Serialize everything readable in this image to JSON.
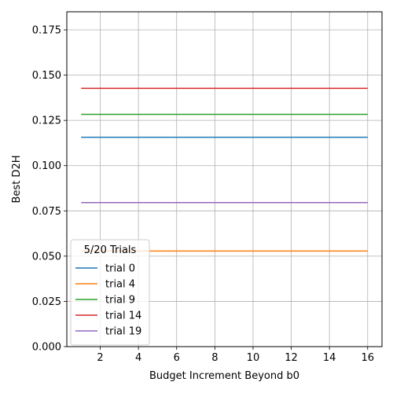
{
  "chart_data": {
    "type": "line",
    "xlabel": "Budget Increment Beyond b0",
    "ylabel": "Best D2H",
    "xlim": [
      0.25,
      16.75
    ],
    "ylim": [
      0.0,
      0.185
    ],
    "xticks": [
      2,
      4,
      6,
      8,
      10,
      12,
      14,
      16
    ],
    "xtick_labels": [
      "2",
      "4",
      "6",
      "8",
      "10",
      "12",
      "14",
      "16"
    ],
    "yticks": [
      0.0,
      0.025,
      0.05,
      0.075,
      0.1,
      0.125,
      0.15,
      0.175
    ],
    "ytick_labels": [
      "0.000",
      "0.025",
      "0.050",
      "0.075",
      "0.100",
      "0.125",
      "0.150",
      "0.175"
    ],
    "grid": true,
    "legend": {
      "title": "5/20 Trials",
      "placement": "lower-left"
    },
    "x": [
      1,
      2,
      3,
      4,
      5,
      6,
      7,
      8,
      9,
      10,
      11,
      12,
      13,
      14,
      15,
      16
    ],
    "series": [
      {
        "name": "trial 0",
        "color": "#1f77b4",
        "values": [
          0.1157,
          0.1157,
          0.1157,
          0.1157,
          0.1157,
          0.1157,
          0.1157,
          0.1157,
          0.1157,
          0.1157,
          0.1157,
          0.1157,
          0.1157,
          0.1157,
          0.1157,
          0.1157
        ]
      },
      {
        "name": "trial 4",
        "color": "#ff7f0e",
        "values": [
          0.0528,
          0.0528,
          0.0528,
          0.0528,
          0.0528,
          0.0528,
          0.0528,
          0.0528,
          0.0528,
          0.0528,
          0.0528,
          0.0528,
          0.0528,
          0.0528,
          0.0528,
          0.0528
        ]
      },
      {
        "name": "trial 9",
        "color": "#2ca02c",
        "values": [
          0.1283,
          0.1283,
          0.1283,
          0.1283,
          0.1283,
          0.1283,
          0.1283,
          0.1283,
          0.1283,
          0.1283,
          0.1283,
          0.1283,
          0.1283,
          0.1283,
          0.1283,
          0.1283
        ]
      },
      {
        "name": "trial 14",
        "color": "#d62728",
        "values": [
          0.1427,
          0.1427,
          0.1427,
          0.1427,
          0.1427,
          0.1427,
          0.1427,
          0.1427,
          0.1427,
          0.1427,
          0.1427,
          0.1427,
          0.1427,
          0.1427,
          0.1427,
          0.1427
        ]
      },
      {
        "name": "trial 19",
        "color": "#9467bd",
        "values": [
          0.0796,
          0.0796,
          0.0796,
          0.0796,
          0.0796,
          0.0796,
          0.0796,
          0.0796,
          0.0796,
          0.0796,
          0.0796,
          0.0796,
          0.0796,
          0.0796,
          0.0796,
          0.0796
        ]
      }
    ]
  }
}
